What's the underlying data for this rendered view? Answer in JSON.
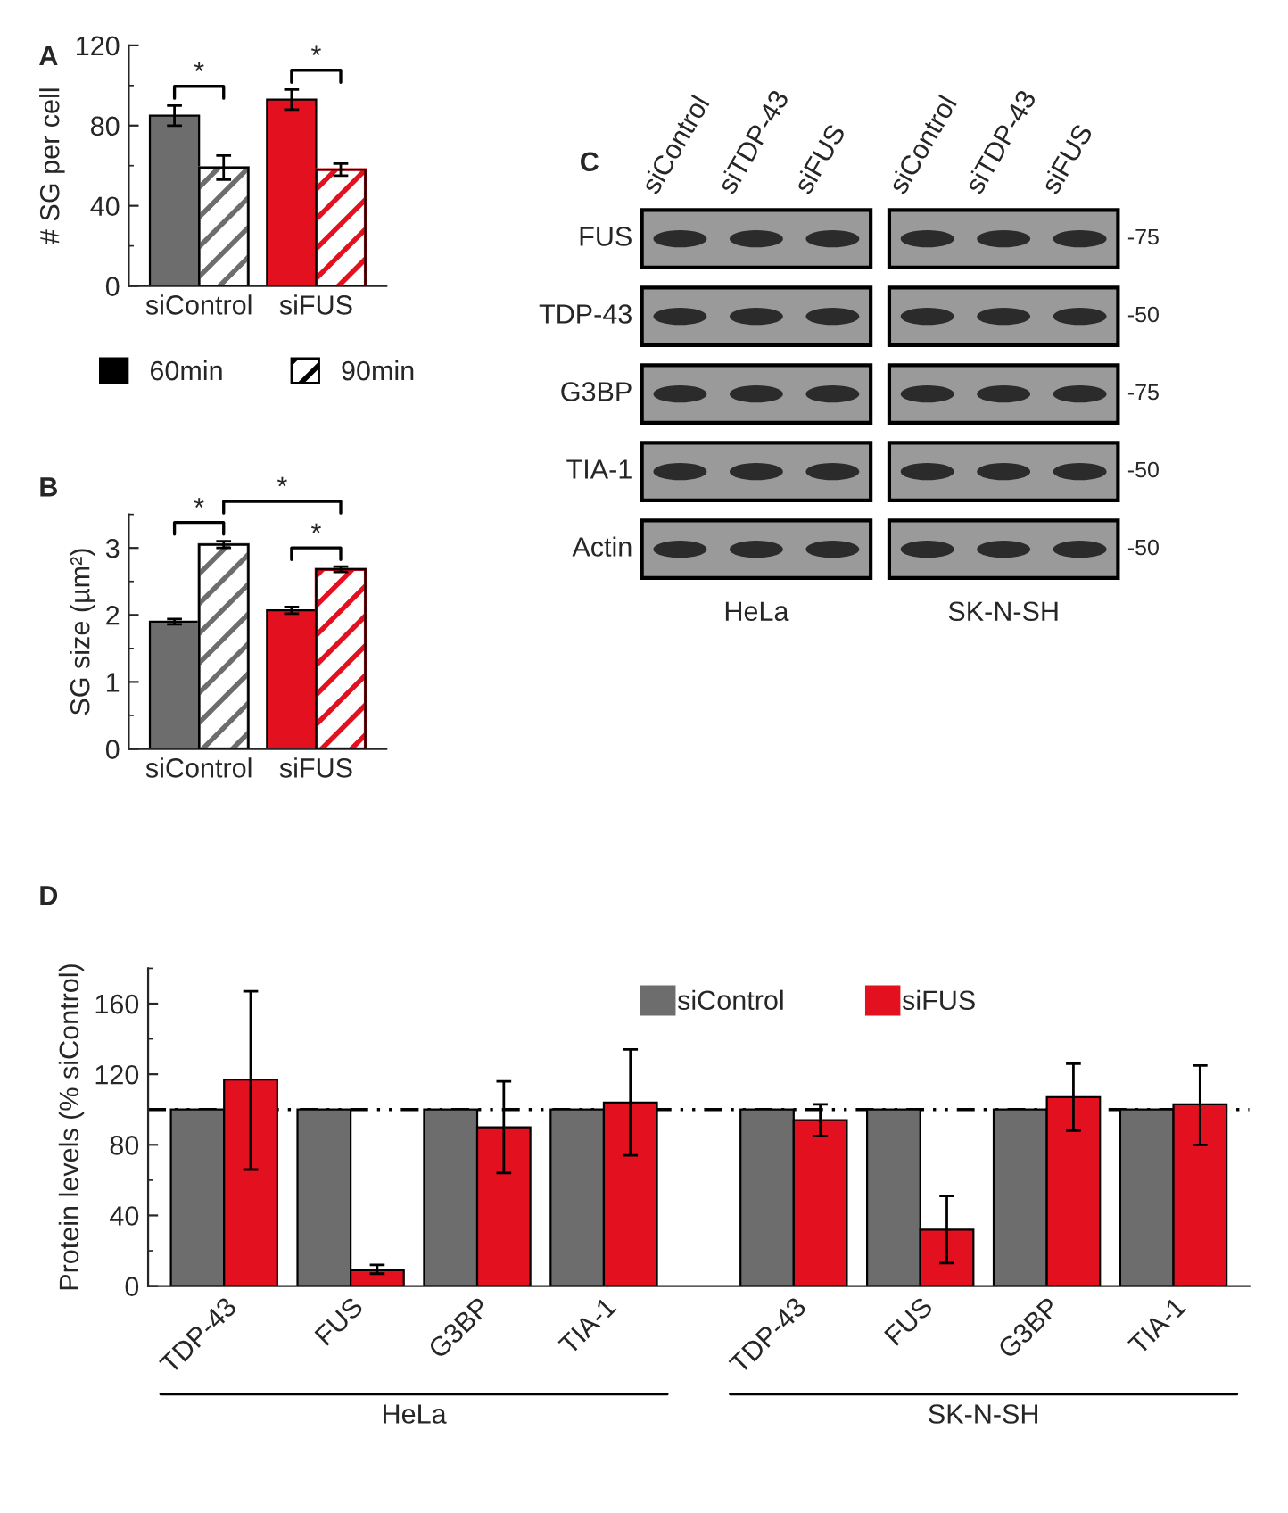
{
  "chart_data": [
    {
      "type": "bar",
      "title": "A",
      "ylabel": "# SG per cell",
      "categories": [
        "siControl",
        "siFUS"
      ],
      "series": [
        {
          "name": "60min",
          "color": "#000000",
          "colors": [
            "#6d6d6d",
            "#e3101f"
          ],
          "values": [
            85,
            93
          ],
          "errors": [
            5,
            5
          ]
        },
        {
          "name": "90min",
          "color": "#000000",
          "colors": [
            "#6d6d6d",
            "#e3101f"
          ],
          "values": [
            59,
            58
          ],
          "errors": [
            6,
            3
          ]
        }
      ],
      "ylim": [
        0,
        120
      ],
      "yticks": [
        0,
        40,
        80,
        120
      ],
      "legend": "bottom",
      "annotations": [
        "*",
        "*"
      ]
    },
    {
      "type": "bar",
      "title": "B",
      "ylabel": "SG size (µm²)",
      "categories": [
        "siControl",
        "siFUS"
      ],
      "series": [
        {
          "colors": [
            "#6d6d6d",
            "#e3101f"
          ],
          "values": [
            1.9,
            2.07
          ],
          "errors": [
            0.04,
            0.05
          ]
        },
        {
          "colors": [
            "#6d6d6d",
            "#e3101f"
          ],
          "values": [
            3.05,
            2.68
          ],
          "errors": [
            0.05,
            0.04
          ]
        }
      ],
      "ylim": [
        0,
        3.5
      ],
      "yticks": [
        0,
        1,
        2,
        3
      ],
      "annotations": [
        "*",
        "*",
        "*"
      ]
    },
    {
      "type": "other",
      "title": "C",
      "categories": [
        "siControl",
        "siTDP-43",
        "siFUS",
        "siControl",
        "siTDP-43",
        "siFUS"
      ],
      "y_categories": [
        "FUS",
        "TDP-43",
        "G3BP",
        "TIA-1",
        "Actin"
      ],
      "y2_categories": [
        "-75",
        "-50",
        "-75",
        "-50",
        "-50"
      ],
      "annotations": [
        "HeLa",
        "SK-N-SH"
      ]
    },
    {
      "type": "bar",
      "title": "D",
      "ylabel": "Protein levels (% siControl)",
      "categories": [
        "TDP-43",
        "FUS",
        "G3BP",
        "TIA-1",
        "TDP-43",
        "FUS",
        "G3BP",
        "TIA-1"
      ],
      "series": [
        {
          "name": "siControl",
          "color": "#6d6d6d",
          "values": [
            100,
            100,
            100,
            100,
            100,
            100,
            100,
            100
          ]
        },
        {
          "name": "siFUS",
          "color": "#e3101f",
          "values": [
            117,
            9,
            90,
            104,
            94,
            32,
            107,
            103
          ],
          "errors": [
            [
              66,
              167
            ],
            [
              7,
              12
            ],
            [
              64,
              116
            ],
            [
              74,
              134
            ],
            [
              85,
              103
            ],
            [
              13,
              51
            ],
            [
              88,
              126
            ],
            [
              80,
              125
            ]
          ]
        }
      ],
      "ylim": [
        0,
        180
      ],
      "yticks": [
        0,
        40,
        80,
        120,
        160
      ],
      "legend": "top",
      "ref_lines": [
        {
          "axis": "y",
          "value": 100,
          "line_style": "dashdot",
          "color": "#000000"
        }
      ],
      "annotations": [
        "HeLa",
        "SK-N-SH"
      ]
    }
  ]
}
